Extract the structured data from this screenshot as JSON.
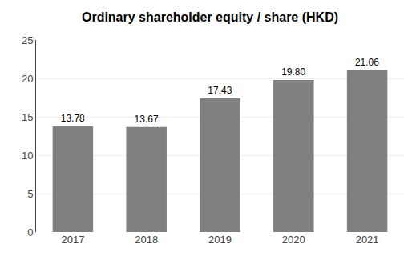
{
  "chart_data": {
    "type": "bar",
    "title": "Ordinary shareholder equity / share (HKD)",
    "categories": [
      "2017",
      "2018",
      "2019",
      "2020",
      "2021"
    ],
    "values": [
      13.78,
      13.67,
      17.43,
      19.8,
      21.06
    ],
    "value_labels": [
      "13.78",
      "13.67",
      "17.43",
      "19.80",
      "21.06"
    ],
    "data_labels": true,
    "color": "#808080",
    "ylim": [
      0,
      25
    ],
    "yticks": [
      0,
      5,
      10,
      15,
      20,
      25
    ],
    "grid": true
  }
}
